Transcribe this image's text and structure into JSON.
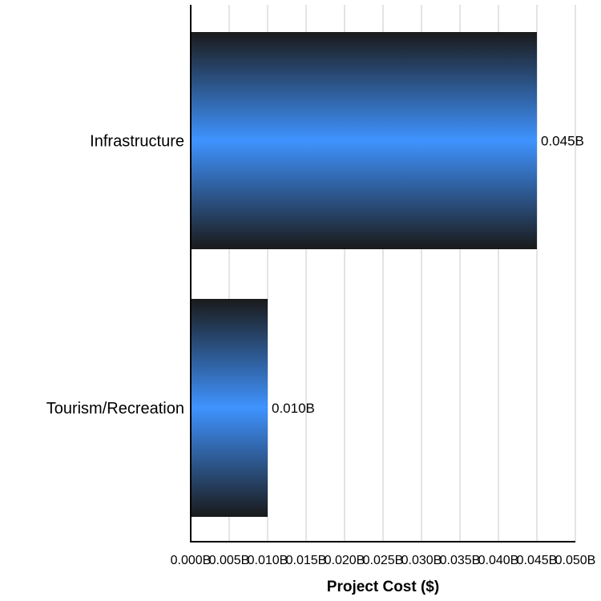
{
  "chart_data": {
    "type": "bar",
    "orientation": "horizontal",
    "categories": [
      "Infrastructure",
      "Tourism/Recreation"
    ],
    "values": [
      0.045,
      0.01
    ],
    "value_labels": [
      "0.045B",
      "0.010B"
    ],
    "title": "",
    "xlabel": "Project Cost ($)",
    "ylabel": "",
    "xlim": [
      0,
      0.05
    ],
    "x_ticks": [
      0.0,
      0.005,
      0.01,
      0.015,
      0.02,
      0.025,
      0.03,
      0.035,
      0.04,
      0.045,
      0.05
    ],
    "x_tick_labels": [
      "0.000B",
      "0.005B",
      "0.010B",
      "0.015B",
      "0.020B",
      "0.025B",
      "0.030B",
      "0.035B",
      "0.040B",
      "0.045B",
      "0.050B"
    ],
    "grid": true,
    "legend": "none",
    "colors": {
      "bar_edge": "#1a1a1a",
      "bar_center": "#3f93ff",
      "gridline": "#c8c8c8",
      "axis": "#000000"
    }
  }
}
